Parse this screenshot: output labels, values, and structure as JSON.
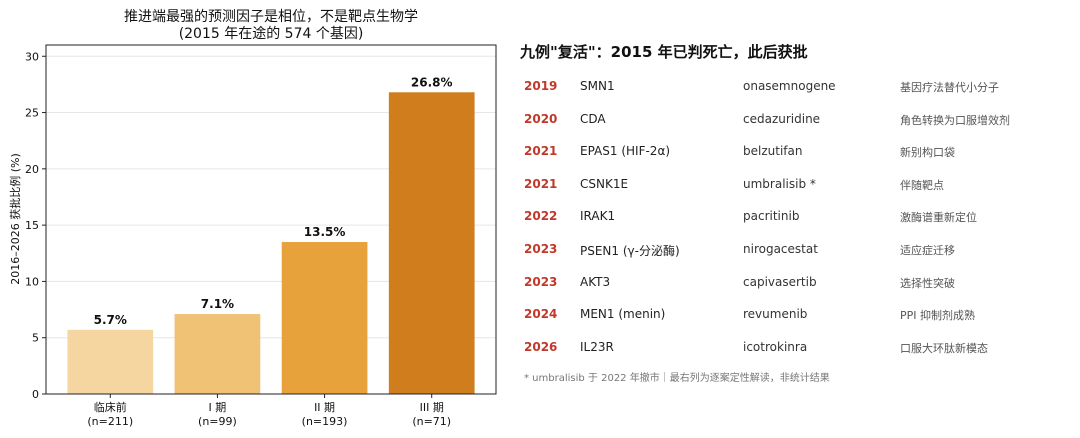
{
  "chart_data": {
    "type": "bar",
    "title": "推进端最强的预测因子是相位，不是靶点生物学",
    "subtitle": "(2015 年在途的 574 个基因)",
    "ylabel": "2016–2026 获批比例 (%)",
    "xlabel": "",
    "ylim": [
      0,
      31
    ],
    "yticks": [
      0,
      5,
      10,
      15,
      20,
      25,
      30
    ],
    "grid": true,
    "categories": [
      "临床前",
      "I 期",
      "II 期",
      "III 期"
    ],
    "category_counts": [
      "(n=211)",
      "(n=99)",
      "(n=193)",
      "(n=71)"
    ],
    "values": [
      5.7,
      7.1,
      13.5,
      26.8
    ],
    "value_labels": [
      "5.7%",
      "7.1%",
      "13.5%",
      "26.8%"
    ],
    "colors": [
      "#f5d6a0",
      "#efc276",
      "#e8a23b",
      "#cf7d1d"
    ]
  },
  "table": {
    "title": "九例\"复活\"：2015 年已判死亡，此后获批",
    "rows": [
      {
        "year": "2019",
        "gene": "SMN1",
        "drug": "onasemnogene",
        "note": "基因疗法替代小分子"
      },
      {
        "year": "2020",
        "gene": "CDA",
        "drug": "cedazuridine",
        "note": "角色转换为口服增效剂"
      },
      {
        "year": "2021",
        "gene": "EPAS1 (HIF-2α)",
        "drug": "belzutifan",
        "note": "新别构口袋"
      },
      {
        "year": "2021",
        "gene": "CSNK1E",
        "drug": "umbralisib *",
        "note": "伴随靶点"
      },
      {
        "year": "2022",
        "gene": "IRAK1",
        "drug": "pacritinib",
        "note": "激酶谱重新定位"
      },
      {
        "year": "2023",
        "gene": "PSEN1 (γ-分泌酶)",
        "drug": "nirogacestat",
        "note": "适应症迁移"
      },
      {
        "year": "2023",
        "gene": "AKT3",
        "drug": "capivasertib",
        "note": "选择性突破"
      },
      {
        "year": "2024",
        "gene": "MEN1 (menin)",
        "drug": "revumenib",
        "note": "PPI 抑制剂成熟"
      },
      {
        "year": "2026",
        "gene": "IL23R",
        "drug": "icotrokinra",
        "note": "口服大环肽新模态"
      }
    ],
    "footnote": "* umbralisib 于 2022 年撤市｜最右列为逐案定性解读，非统计结果"
  },
  "colors": {
    "year_accent": "#c0392b"
  }
}
